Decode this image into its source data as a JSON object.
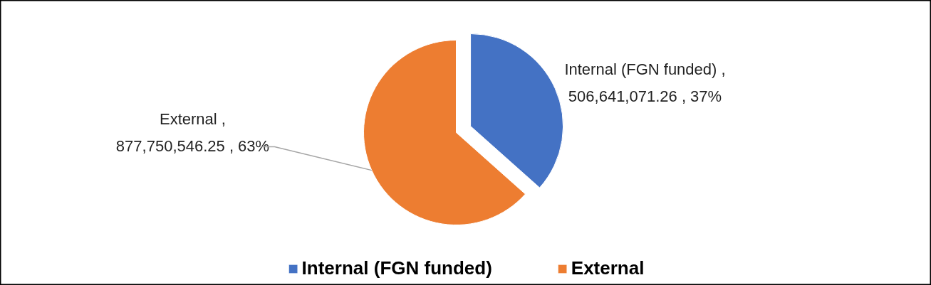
{
  "chart_data": {
    "type": "pie",
    "categories": [
      "Internal (FGN funded)",
      "External"
    ],
    "values": [
      506641071.26,
      877750546.25
    ],
    "colors": [
      "#4472c4",
      "#ed7d31"
    ],
    "value_labels": [
      "Internal (FGN funded) ,\n506,641,071.26 , 37%",
      "External ,\n877,750,546.25 , 63%"
    ],
    "legend": "bottom"
  }
}
